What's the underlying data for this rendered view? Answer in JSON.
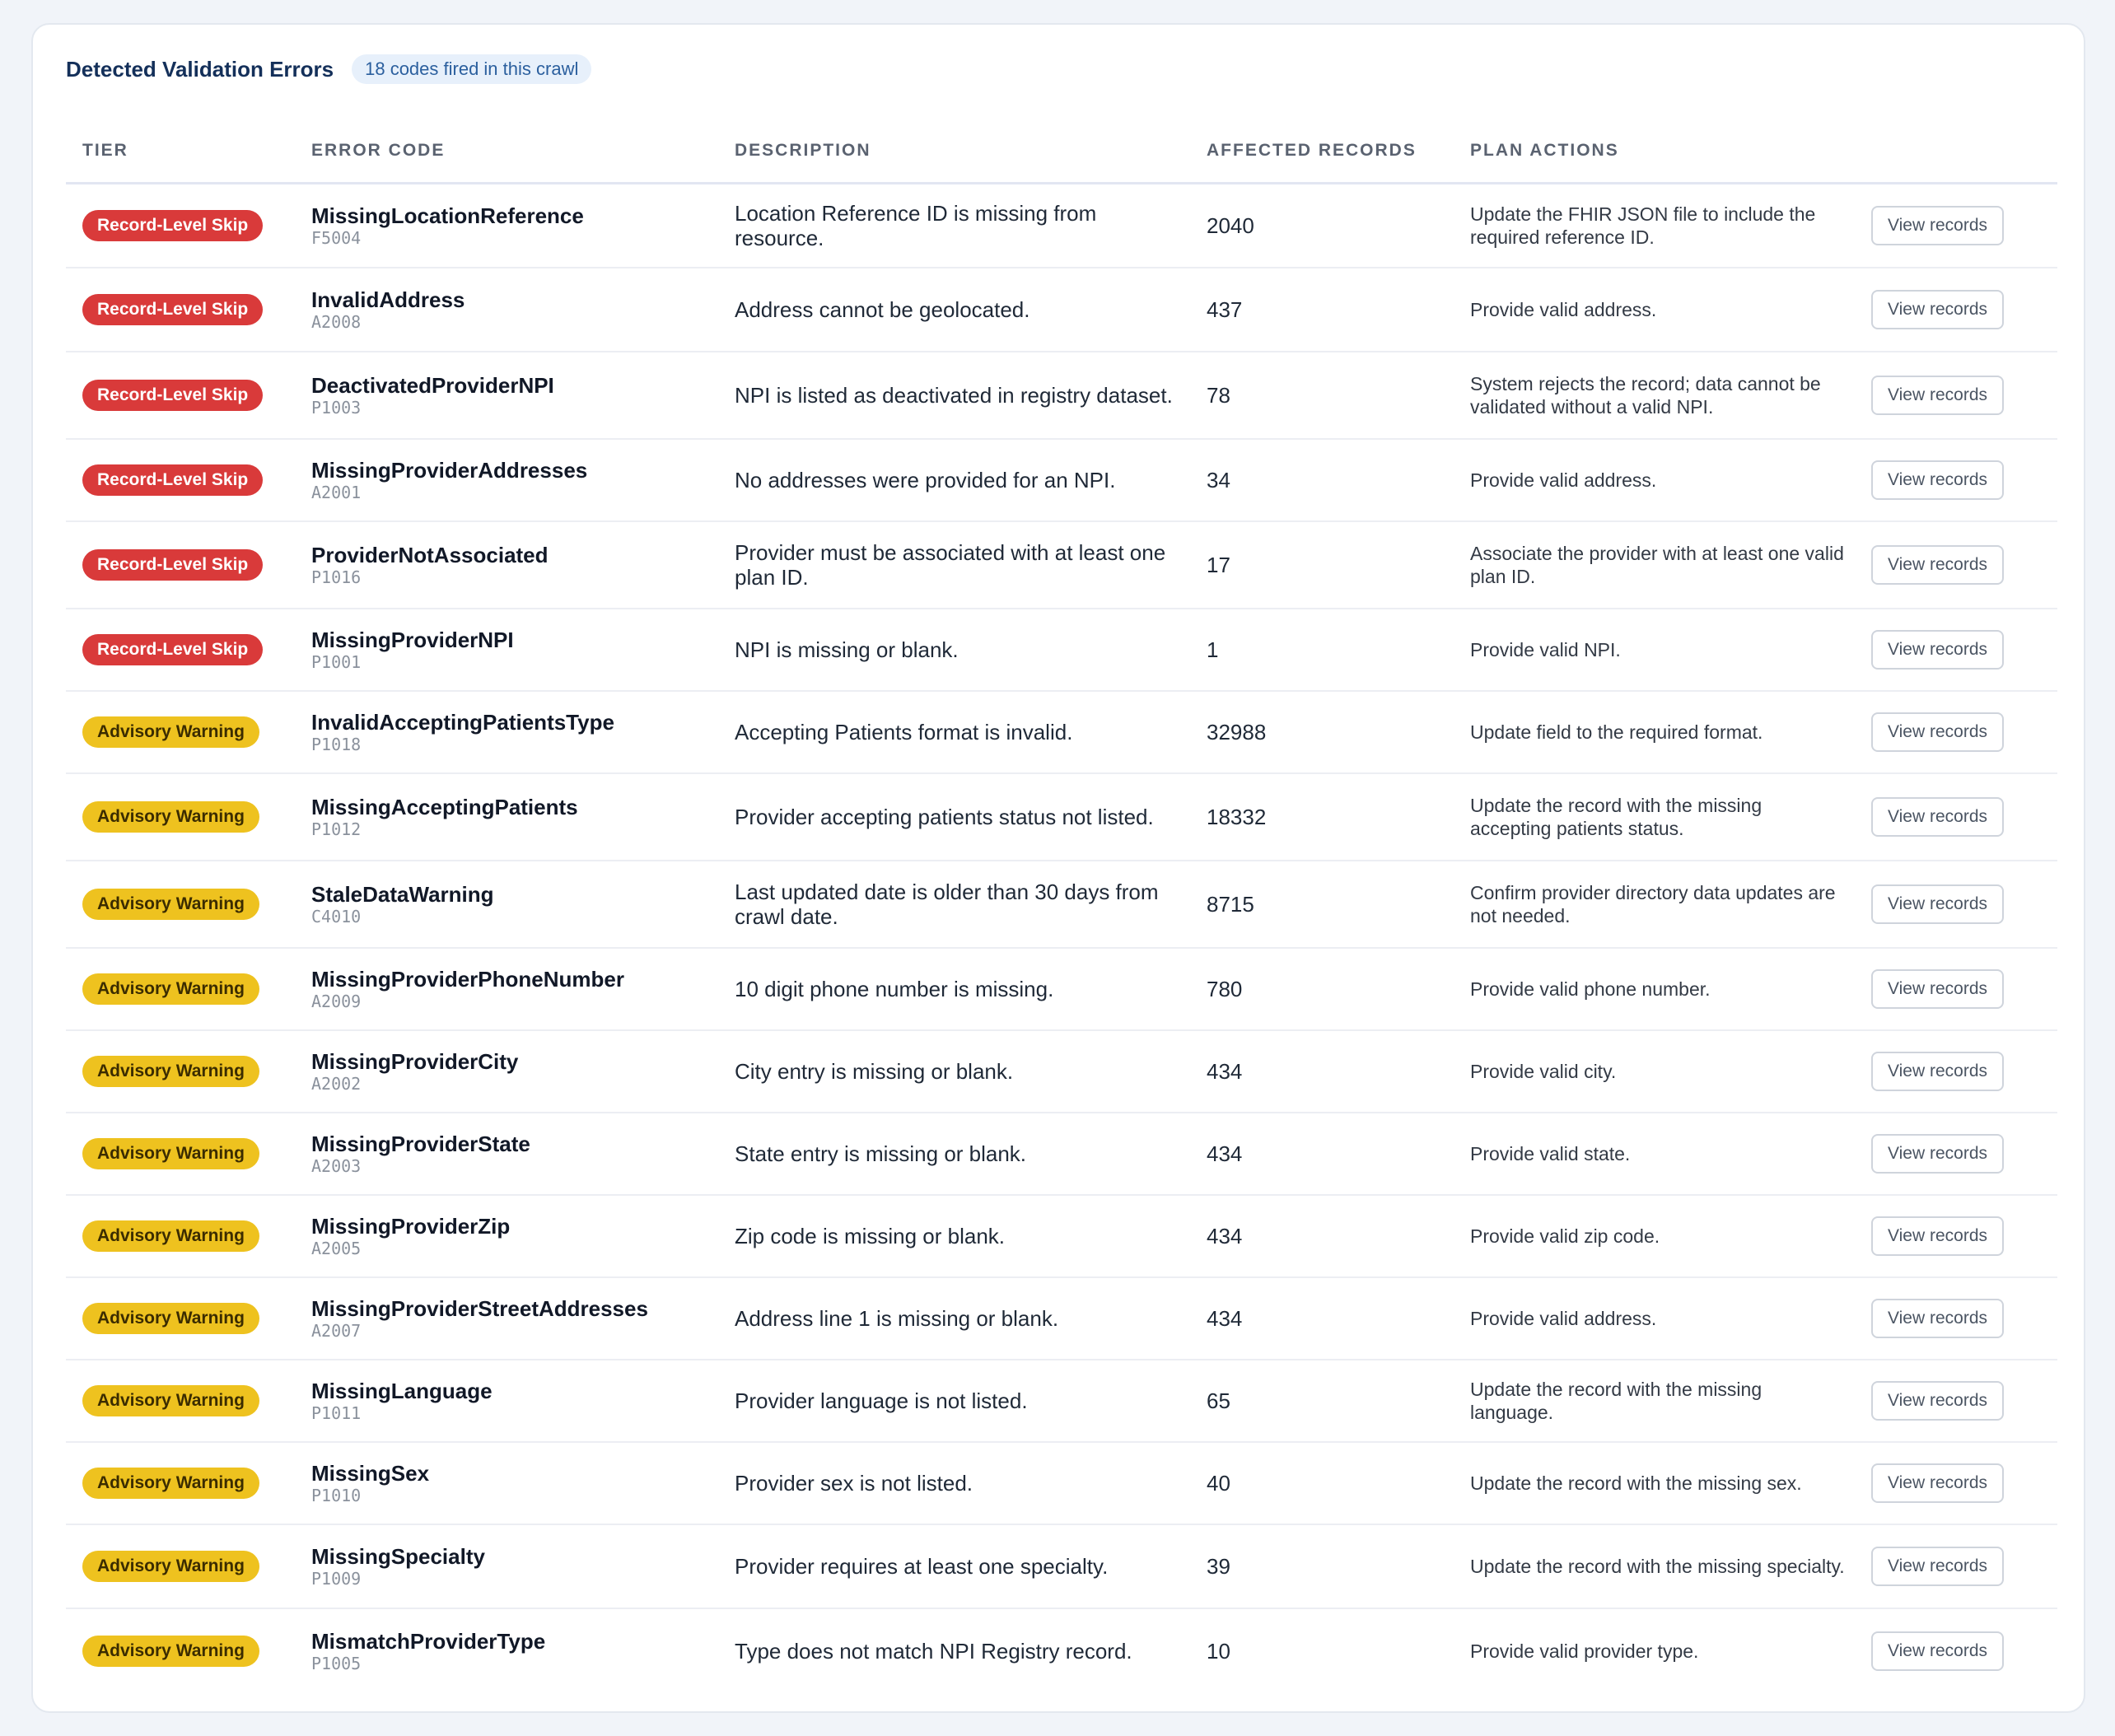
{
  "header": {
    "title": "Detected Validation Errors",
    "badge": "18 codes fired in this crawl"
  },
  "columns": {
    "tier": "TIER",
    "code": "ERROR CODE",
    "description": "DESCRIPTION",
    "affected": "AFFECTED RECORDS",
    "plan": "PLAN ACTIONS"
  },
  "colors": {
    "record_level_skip": "#d93a3a",
    "advisory_warning": "#eec21f",
    "title": "#14305a"
  },
  "view_label": "View records",
  "rows": [
    {
      "tier": "Record-Level Skip",
      "tier_type": "skip",
      "code": "MissingLocationReference",
      "id": "F5004",
      "description": "Location Reference ID is missing from resource.",
      "affected": "2040",
      "plan": "Update the FHIR JSON file to include the required reference ID."
    },
    {
      "tier": "Record-Level Skip",
      "tier_type": "skip",
      "code": "InvalidAddress",
      "id": "A2008",
      "description": "Address cannot be geolocated.",
      "affected": "437",
      "plan": "Provide valid address."
    },
    {
      "tier": "Record-Level Skip",
      "tier_type": "skip",
      "code": "DeactivatedProviderNPI",
      "id": "P1003",
      "description": "NPI is listed as deactivated in registry dataset.",
      "affected": "78",
      "plan": "System rejects the record; data cannot be validated without a valid NPI."
    },
    {
      "tier": "Record-Level Skip",
      "tier_type": "skip",
      "code": "MissingProviderAddresses",
      "id": "A2001",
      "description": "No addresses were provided for an NPI.",
      "affected": "34",
      "plan": "Provide valid address."
    },
    {
      "tier": "Record-Level Skip",
      "tier_type": "skip",
      "code": "ProviderNotAssociated",
      "id": "P1016",
      "description": "Provider must be associated with at least one plan ID.",
      "affected": "17",
      "plan": "Associate the provider with at least one valid plan ID."
    },
    {
      "tier": "Record-Level Skip",
      "tier_type": "skip",
      "code": "MissingProviderNPI",
      "id": "P1001",
      "description": "NPI is missing or blank.",
      "affected": "1",
      "plan": "Provide valid NPI."
    },
    {
      "tier": "Advisory Warning",
      "tier_type": "warn",
      "code": "InvalidAcceptingPatientsType",
      "id": "P1018",
      "description": "Accepting Patients format is invalid.",
      "affected": "32988",
      "plan": "Update field to the required format."
    },
    {
      "tier": "Advisory Warning",
      "tier_type": "warn",
      "code": "MissingAcceptingPatients",
      "id": "P1012",
      "description": "Provider accepting patients status not listed.",
      "affected": "18332",
      "plan": "Update the record with the missing accepting patients status."
    },
    {
      "tier": "Advisory Warning",
      "tier_type": "warn",
      "code": "StaleDataWarning",
      "id": "C4010",
      "description": "Last updated date is older than 30 days from crawl date.",
      "affected": "8715",
      "plan": "Confirm provider directory data updates are not needed."
    },
    {
      "tier": "Advisory Warning",
      "tier_type": "warn",
      "code": "MissingProviderPhoneNumber",
      "id": "A2009",
      "description": "10 digit phone number is missing.",
      "affected": "780",
      "plan": "Provide valid phone number."
    },
    {
      "tier": "Advisory Warning",
      "tier_type": "warn",
      "code": "MissingProviderCity",
      "id": "A2002",
      "description": "City entry is missing or blank.",
      "affected": "434",
      "plan": "Provide valid city."
    },
    {
      "tier": "Advisory Warning",
      "tier_type": "warn",
      "code": "MissingProviderState",
      "id": "A2003",
      "description": "State entry is missing or blank.",
      "affected": "434",
      "plan": "Provide valid state."
    },
    {
      "tier": "Advisory Warning",
      "tier_type": "warn",
      "code": "MissingProviderZip",
      "id": "A2005",
      "description": "Zip code is missing or blank.",
      "affected": "434",
      "plan": "Provide valid zip code."
    },
    {
      "tier": "Advisory Warning",
      "tier_type": "warn",
      "code": "MissingProviderStreetAddresses",
      "id": "A2007",
      "description": "Address line 1 is missing or blank.",
      "affected": "434",
      "plan": "Provide valid address."
    },
    {
      "tier": "Advisory Warning",
      "tier_type": "warn",
      "code": "MissingLanguage",
      "id": "P1011",
      "description": "Provider language is not listed.",
      "affected": "65",
      "plan": "Update the record with the missing language."
    },
    {
      "tier": "Advisory Warning",
      "tier_type": "warn",
      "code": "MissingSex",
      "id": "P1010",
      "description": "Provider sex is not listed.",
      "affected": "40",
      "plan": "Update the record with the missing sex."
    },
    {
      "tier": "Advisory Warning",
      "tier_type": "warn",
      "code": "MissingSpecialty",
      "id": "P1009",
      "description": "Provider requires at least one specialty.",
      "affected": "39",
      "plan": "Update the record with the missing specialty."
    },
    {
      "tier": "Advisory Warning",
      "tier_type": "warn",
      "code": "MismatchProviderType",
      "id": "P1005",
      "description": "Type does not match NPI Registry record.",
      "affected": "10",
      "plan": "Provide valid provider type."
    }
  ]
}
